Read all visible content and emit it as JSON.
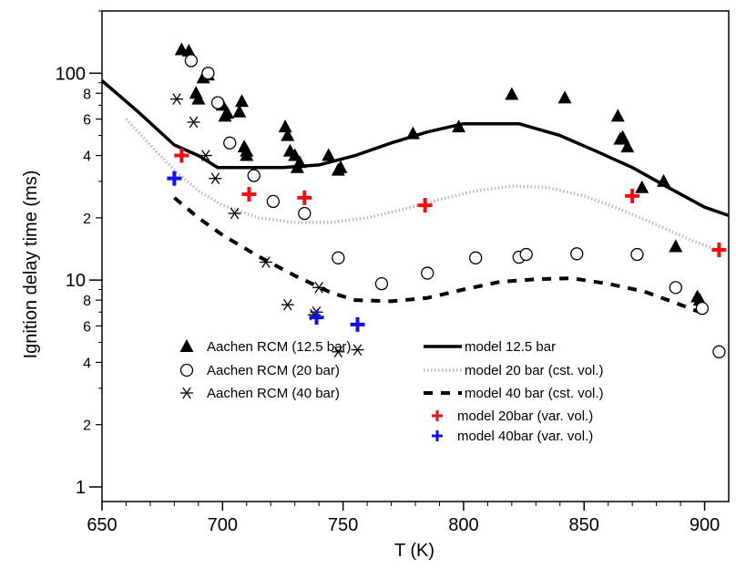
{
  "chart_data": {
    "type": "scatter",
    "xlabel": "T (K)",
    "ylabel": "Ignition delay time (ms)",
    "xlim": [
      650,
      910
    ],
    "ylim": [
      0.85,
      200
    ],
    "yscale": "log",
    "grid": false,
    "legend_position": "bottom-center",
    "x_ticks": [
      650,
      700,
      750,
      800,
      850,
      900
    ],
    "x_tick_labels": [
      "650",
      "700",
      "750",
      "800",
      "850",
      "900"
    ],
    "y_major_ticks": [
      1,
      10,
      100
    ],
    "y_major_tick_labels": [
      "1",
      "10",
      "100"
    ],
    "y_minor_ticks": [
      2,
      4,
      6,
      8,
      20,
      40,
      60,
      80
    ],
    "y_minor_tick_labels": [
      "2",
      "4",
      "6",
      "8",
      "2",
      "4",
      "6",
      "8"
    ],
    "series": [
      {
        "name": "Aachen  RCM (12.5 bar)",
        "kind": "scatter",
        "marker": "triangle",
        "color": "#000000",
        "points": [
          [
            683,
            130
          ],
          [
            686,
            128
          ],
          [
            689,
            80
          ],
          [
            690,
            75
          ],
          [
            692,
            95
          ],
          [
            694,
            98
          ],
          [
            700,
            70
          ],
          [
            701,
            62
          ],
          [
            702,
            64
          ],
          [
            707,
            65
          ],
          [
            708,
            73
          ],
          [
            709,
            44
          ],
          [
            710,
            40
          ],
          [
            710,
            42
          ],
          [
            726,
            55
          ],
          [
            727,
            50
          ],
          [
            728,
            42
          ],
          [
            730,
            40
          ],
          [
            731,
            35
          ],
          [
            732,
            37
          ],
          [
            744,
            40
          ],
          [
            748,
            34
          ],
          [
            749,
            35
          ],
          [
            779,
            51
          ],
          [
            798,
            55
          ],
          [
            820,
            79
          ],
          [
            842,
            76
          ],
          [
            864,
            62
          ],
          [
            865,
            48
          ],
          [
            866,
            49
          ],
          [
            868,
            44
          ],
          [
            874,
            28
          ],
          [
            883,
            30
          ],
          [
            888,
            14.5
          ],
          [
            897,
            8.3
          ],
          [
            898,
            8.0
          ]
        ]
      },
      {
        "name": "Aachen  RCM (20 bar)",
        "kind": "scatter",
        "marker": "open-circle",
        "color": "#000000",
        "points": [
          [
            687,
            115
          ],
          [
            694,
            100
          ],
          [
            698,
            72
          ],
          [
            703,
            46
          ],
          [
            713,
            32
          ],
          [
            721,
            24
          ],
          [
            734,
            21
          ],
          [
            748,
            12.8
          ],
          [
            766,
            9.6
          ],
          [
            785,
            10.8
          ],
          [
            805,
            12.8
          ],
          [
            823,
            12.9
          ],
          [
            826,
            13.3
          ],
          [
            847,
            13.4
          ],
          [
            872,
            13.3
          ],
          [
            888,
            9.2
          ],
          [
            899,
            7.3
          ],
          [
            906,
            4.5
          ]
        ]
      },
      {
        "name": "Aachen  RCM (40 bar)",
        "kind": "scatter",
        "marker": "asterisk",
        "color": "#000000",
        "points": [
          [
            681,
            75
          ],
          [
            688,
            58
          ],
          [
            693,
            40
          ],
          [
            697,
            31
          ],
          [
            705,
            21
          ],
          [
            718,
            12.2
          ],
          [
            727,
            7.6
          ],
          [
            738,
            6.8
          ],
          [
            739,
            7.0
          ],
          [
            740,
            9.2
          ],
          [
            748,
            4.5
          ],
          [
            756,
            4.6
          ]
        ]
      },
      {
        "name": "model 12.5 bar",
        "kind": "line",
        "style": "solid",
        "color": "#000000",
        "points": [
          [
            650,
            92
          ],
          [
            665,
            65
          ],
          [
            680,
            45
          ],
          [
            690,
            40
          ],
          [
            698,
            35
          ],
          [
            710,
            35
          ],
          [
            725,
            35
          ],
          [
            740,
            36
          ],
          [
            755,
            40
          ],
          [
            770,
            46
          ],
          [
            785,
            52
          ],
          [
            800,
            57
          ],
          [
            810,
            57
          ],
          [
            823,
            57
          ],
          [
            840,
            50
          ],
          [
            855,
            42
          ],
          [
            870,
            35
          ],
          [
            885,
            28
          ],
          [
            900,
            22.5
          ],
          [
            910,
            20.5
          ]
        ]
      },
      {
        "name": "model 20 bar (cst. vol.)",
        "kind": "line",
        "style": "dotted",
        "color": "#bbbbbb",
        "points": [
          [
            660,
            60
          ],
          [
            670,
            45
          ],
          [
            680,
            34
          ],
          [
            690,
            27
          ],
          [
            700,
            23
          ],
          [
            715,
            20
          ],
          [
            730,
            19
          ],
          [
            745,
            19
          ],
          [
            760,
            20
          ],
          [
            775,
            22
          ],
          [
            790,
            24.5
          ],
          [
            805,
            27
          ],
          [
            820,
            28.5
          ],
          [
            835,
            28
          ],
          [
            850,
            25.5
          ],
          [
            865,
            22
          ],
          [
            880,
            18.5
          ],
          [
            895,
            15.5
          ],
          [
            905,
            14
          ]
        ]
      },
      {
        "name": "model 40 bar (cst. vol.)",
        "kind": "line",
        "style": "dashed",
        "color": "#000000",
        "points": [
          [
            680,
            25
          ],
          [
            690,
            20
          ],
          [
            700,
            16.5
          ],
          [
            715,
            13
          ],
          [
            730,
            10.5
          ],
          [
            745,
            8.7
          ],
          [
            755,
            8.0
          ],
          [
            770,
            7.9
          ],
          [
            785,
            8.2
          ],
          [
            800,
            9.0
          ],
          [
            815,
            9.8
          ],
          [
            830,
            10.1
          ],
          [
            845,
            10.2
          ],
          [
            860,
            9.6
          ],
          [
            875,
            8.8
          ],
          [
            890,
            7.6
          ],
          [
            898,
            7.0
          ]
        ]
      },
      {
        "name": "model 20bar (var. vol.)",
        "kind": "scatter",
        "marker": "plus",
        "color": "#ee1111",
        "points": [
          [
            683,
            40
          ],
          [
            711,
            26
          ],
          [
            734,
            25
          ],
          [
            784,
            23
          ],
          [
            870,
            25.5
          ],
          [
            906,
            14
          ]
        ]
      },
      {
        "name": "model 40bar (var. vol.)",
        "kind": "scatter",
        "marker": "plus",
        "color": "#1111ee",
        "points": [
          [
            680,
            31
          ],
          [
            739,
            6.6
          ],
          [
            756,
            6.1
          ]
        ]
      }
    ]
  }
}
